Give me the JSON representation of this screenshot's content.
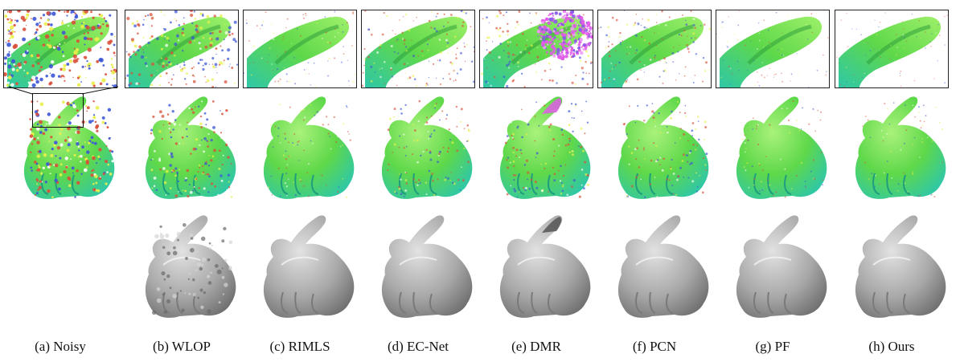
{
  "figure": {
    "columns": [
      {
        "id": "noisy",
        "caption": "(a) Noisy",
        "has_mesh": false,
        "noise": 1.0,
        "artifact": "none"
      },
      {
        "id": "wlop",
        "caption": "(b) WLOP",
        "has_mesh": true,
        "noise": 0.7,
        "artifact": "rough"
      },
      {
        "id": "rimls",
        "caption": "(c) RIMLS",
        "has_mesh": true,
        "noise": 0.25,
        "artifact": "none"
      },
      {
        "id": "ecnet",
        "caption": "(d) EC-Net",
        "has_mesh": true,
        "noise": 0.45,
        "artifact": "none"
      },
      {
        "id": "dmr",
        "caption": "(e) DMR",
        "has_mesh": true,
        "noise": 0.5,
        "artifact": "magenta-ear"
      },
      {
        "id": "pcn",
        "caption": "(f) PCN",
        "has_mesh": true,
        "noise": 0.45,
        "artifact": "none"
      },
      {
        "id": "pf",
        "caption": "(g) PF",
        "has_mesh": true,
        "noise": 0.2,
        "artifact": "none"
      },
      {
        "id": "ours",
        "caption": "(h) Ours",
        "has_mesh": true,
        "noise": 0.15,
        "artifact": "none"
      }
    ],
    "colors": {
      "point_green": "#5fd84a",
      "point_teal": "#2fc7a8",
      "point_red": "#d9503a",
      "point_blue": "#3d56d6",
      "artifact_magenta": "#e05ae8",
      "mesh_gray": "#a8a8a8"
    }
  }
}
